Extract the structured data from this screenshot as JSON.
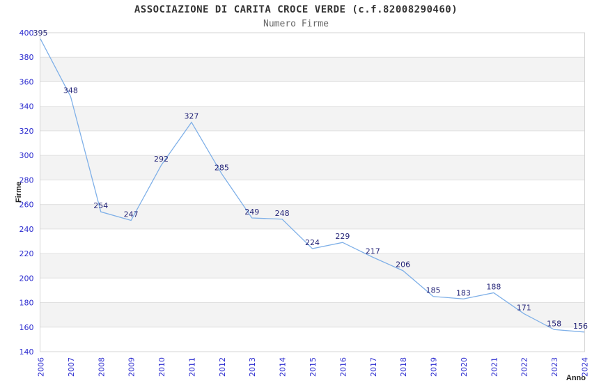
{
  "chart_data": {
    "type": "line",
    "title": "ASSOCIAZIONE DI CARITA CROCE VERDE (c.f.82008290460)",
    "subtitle": "Numero Firme",
    "xlabel": "Anno",
    "ylabel": "Firme",
    "categories": [
      "2006",
      "2007",
      "2008",
      "2009",
      "2010",
      "2011",
      "2012",
      "2013",
      "2014",
      "2015",
      "2016",
      "2017",
      "2018",
      "2019",
      "2020",
      "2021",
      "2022",
      "2023",
      "2024"
    ],
    "series": [
      {
        "name": "Numero Firme",
        "values": [
          395,
          348,
          254,
          247,
          292,
          327,
          285,
          249,
          248,
          224,
          229,
          217,
          206,
          185,
          183,
          188,
          171,
          158,
          156
        ]
      }
    ],
    "ylim": [
      140,
      400
    ],
    "ytick_step": 20,
    "grid": "horizontal",
    "band_shading": "alternating",
    "legend": "none",
    "data_labels": "above-points",
    "x_tick_rotation": -90,
    "colors": {
      "line": "#7fb0e8",
      "data_label": "#252578",
      "tick_label": "#2b2bcf",
      "band": "#f3f3f3",
      "grid": "#e0e0e0",
      "border": "#d4d4d4",
      "title": "#333333",
      "subtitle": "#666666",
      "axis_label": "#222222"
    }
  }
}
